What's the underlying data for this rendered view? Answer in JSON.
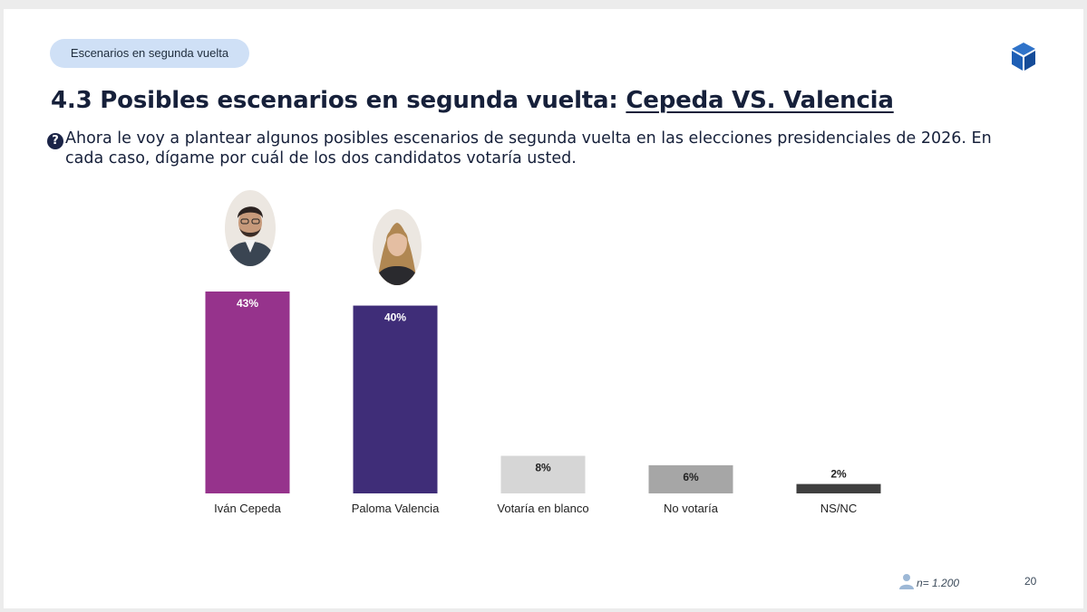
{
  "header": {
    "tag": "Escenarios en segunda vuelta",
    "title_prefix": "4.3 Posibles escenarios en segunda vuelta: ",
    "title_highlight": "Cepeda VS. Valencia",
    "question": "Ahora le voy a plantear algunos posibles escenarios de segunda vuelta en las elecciones presidenciales de 2026. En cada caso, dígame por cuál de los dos candidatos votaría usted.",
    "question_icon": "question-circle-icon",
    "logo_icon": "cube-logo-icon"
  },
  "footer": {
    "sample": "n= 1.200",
    "sample_icon": "person-icon",
    "page": "20"
  },
  "chart_data": {
    "type": "bar",
    "categories": [
      "Iván Cepeda",
      "Paloma Valencia",
      "Votaría en blanco",
      "No votaría",
      "NS/NC"
    ],
    "values": [
      43,
      40,
      8,
      6,
      2
    ],
    "value_labels": [
      "43%",
      "40%",
      "8%",
      "6%",
      "2%"
    ],
    "colors": [
      "#96338c",
      "#3f2d78",
      "#d6d6d6",
      "#a6a6a6",
      "#3f3f3f"
    ],
    "label_colors": [
      "#ffffff",
      "#ffffff",
      "#222222",
      "#222222",
      "#222222"
    ],
    "photos": [
      "cepeda-photo",
      "valencia-photo",
      null,
      null,
      null
    ],
    "ylim": [
      0,
      43
    ],
    "grid": false
  }
}
